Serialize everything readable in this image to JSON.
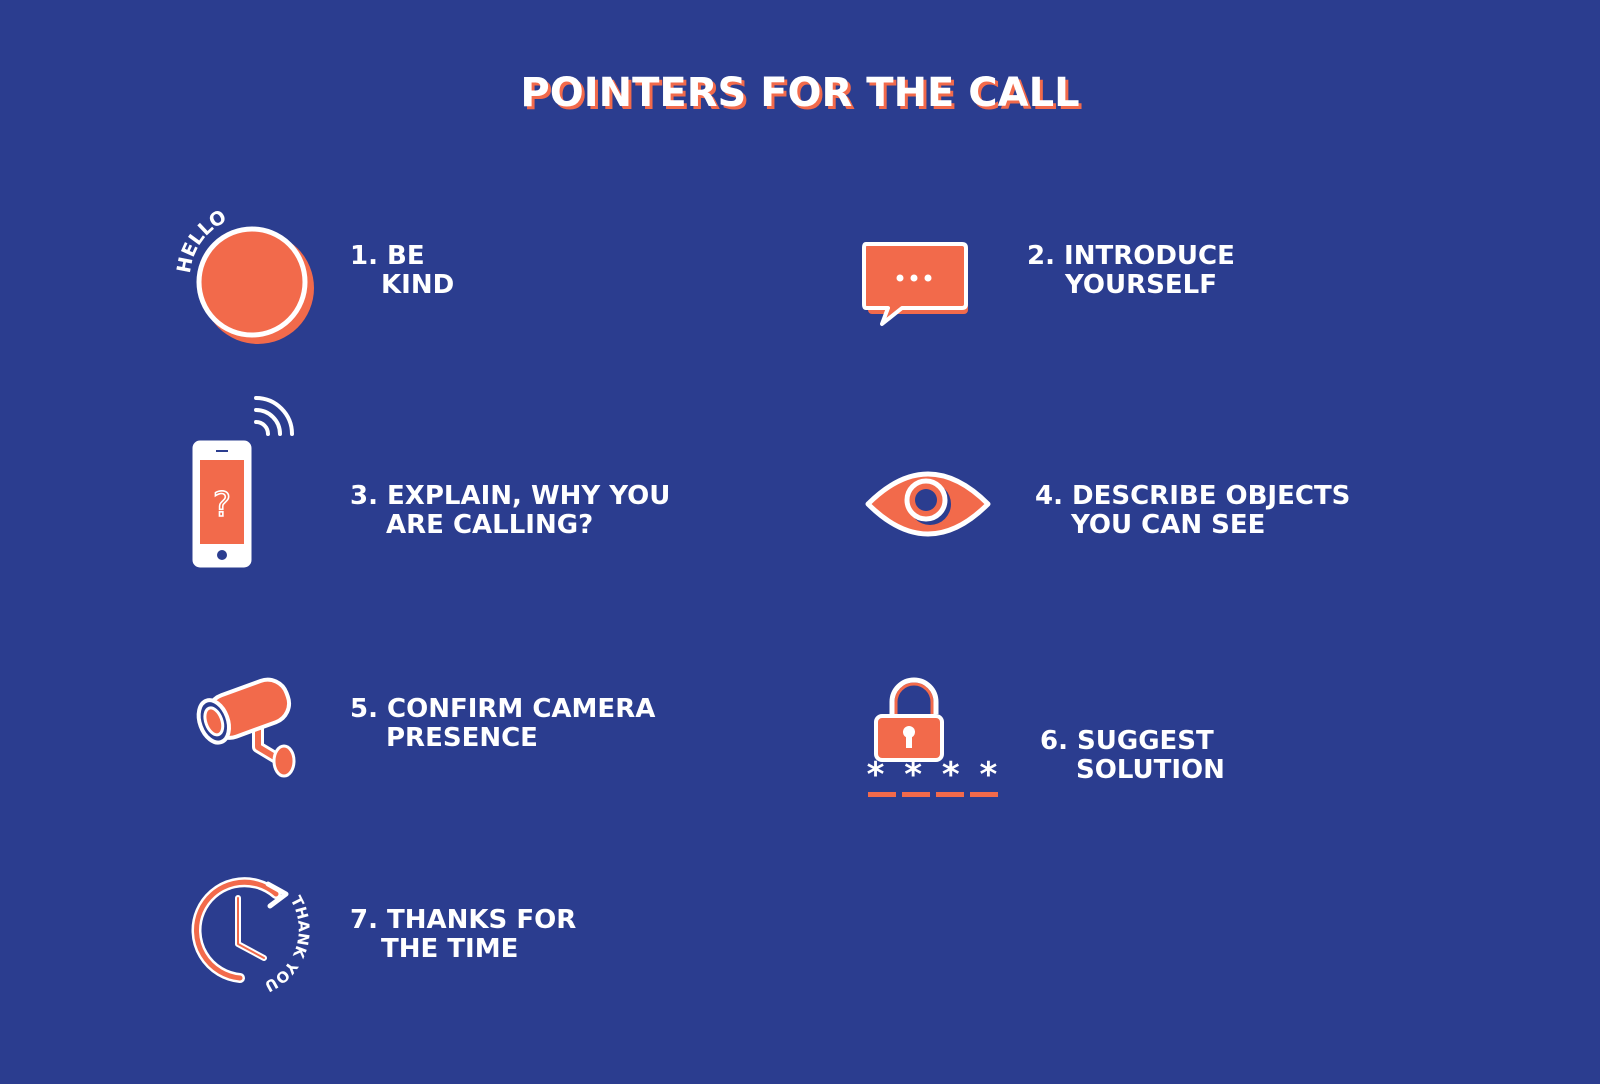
{
  "title": "POINTERS FOR THE CALL",
  "colors": {
    "background": "#2b3d8f",
    "accent": "#f26a4b",
    "text": "#ffffff"
  },
  "tips": [
    {
      "number": "1.",
      "line1": "BE",
      "line2": "KIND",
      "icon": "hello-circle-icon",
      "icon_text": "HELLO"
    },
    {
      "number": "2.",
      "line1": "INTRODUCE",
      "line2": "YOURSELF",
      "icon": "speech-bubble-icon"
    },
    {
      "number": "3.",
      "line1": "EXPLAIN, WHY YOU",
      "line2": "ARE CALLING?",
      "icon": "phone-question-icon",
      "icon_text": "?"
    },
    {
      "number": "4.",
      "line1": "DESCRIBE OBJECTS",
      "line2": "YOU CAN SEE",
      "icon": "eye-icon"
    },
    {
      "number": "5.",
      "line1": "CONFIRM CAMERA",
      "line2": "PRESENCE",
      "icon": "security-camera-icon"
    },
    {
      "number": "6.",
      "line1": "SUGGEST",
      "line2": "SOLUTION",
      "icon": "padlock-password-icon",
      "icon_text": "* * * *"
    },
    {
      "number": "7.",
      "line1": "THANKS FOR",
      "line2": "THE TIME",
      "icon": "clock-thank-you-icon",
      "icon_text": "THANK YOU"
    }
  ]
}
